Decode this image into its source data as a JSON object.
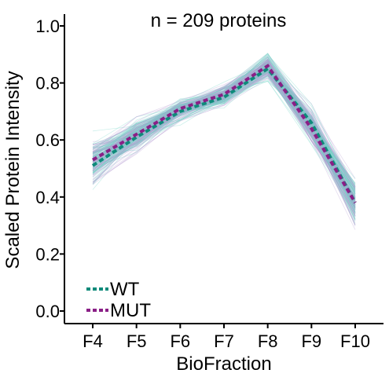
{
  "chart_data": {
    "type": "line",
    "annotation": "n = 209 proteins",
    "xlabel": "BioFraction",
    "ylabel": "Scaled Protein Intensity",
    "categories": [
      "F4",
      "F5",
      "F6",
      "F7",
      "F8",
      "F9",
      "F10"
    ],
    "ylim": [
      -0.03,
      1.05
    ],
    "yticks": [
      0.0,
      0.2,
      0.4,
      0.6,
      0.8,
      1.0
    ],
    "ytick_labels": [
      "0.0",
      "0.2",
      "0.4",
      "0.6",
      "0.8",
      "1.0"
    ],
    "grid": false,
    "legend_position": "bottom-left",
    "protein_count": 209,
    "series": [
      {
        "name": "WT",
        "color": "#0e8a7a",
        "values": [
          0.51,
          0.61,
          0.7,
          0.75,
          0.85,
          0.66,
          0.38
        ]
      },
      {
        "name": "MUT",
        "color": "#8a1f86",
        "values": [
          0.53,
          0.62,
          0.71,
          0.76,
          0.86,
          0.64,
          0.38
        ]
      }
    ],
    "background_profiles_colors": [
      "#6fd3c6",
      "#b59ad0"
    ]
  }
}
